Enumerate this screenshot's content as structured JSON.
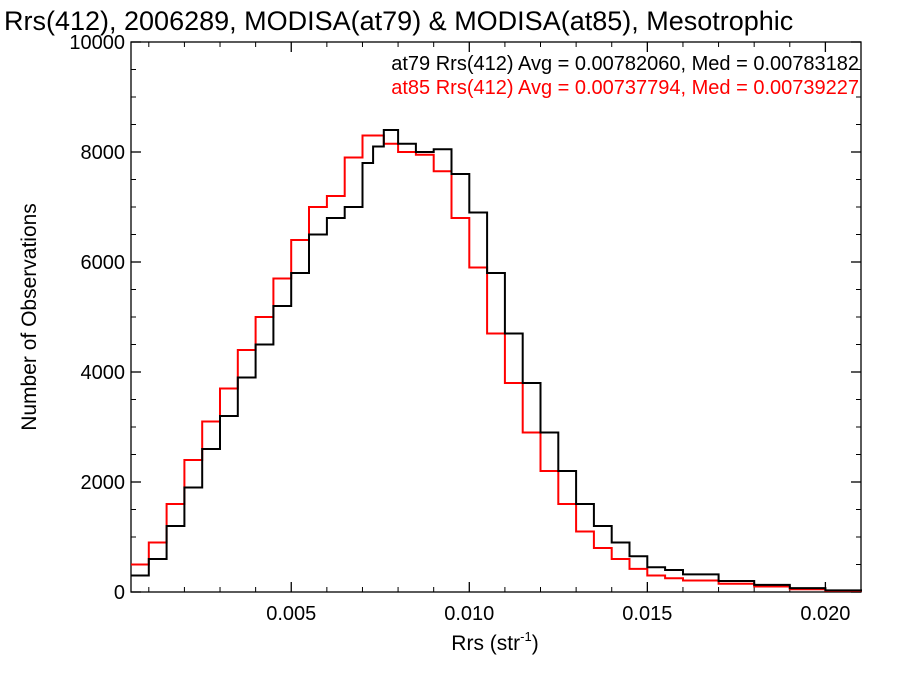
{
  "chart_data": {
    "type": "line",
    "title": "Rrs(412), 2006289, MODISA(at79) & MODISA(at85), Mesotrophic",
    "xlabel": "Rrs (str",
    "xlabel_sup": "-1",
    "xlabel_close": ")",
    "ylabel": "Number of Observations",
    "xlim": [
      0.0005,
      0.021
    ],
    "ylim": [
      0,
      10000
    ],
    "xticks": [
      0.005,
      0.01,
      0.015,
      0.02
    ],
    "xtick_labels": [
      "0.005",
      "0.010",
      "0.015",
      "0.020"
    ],
    "yticks": [
      0,
      2000,
      4000,
      6000,
      8000,
      10000
    ],
    "ytick_labels": [
      "0",
      "2000",
      "4000",
      "6000",
      "8000",
      "10000"
    ],
    "grid": false,
    "legend_position": "top-right",
    "series": [
      {
        "name": "at79",
        "color": "#000000",
        "legend_text": "at79 Rrs(412) Avg = 0.00782060, Med = 0.00783182",
        "x": [
          0.0005,
          0.001,
          0.0015,
          0.002,
          0.0025,
          0.003,
          0.0035,
          0.004,
          0.0045,
          0.005,
          0.0055,
          0.006,
          0.0065,
          0.007,
          0.0073,
          0.0076,
          0.008,
          0.0085,
          0.009,
          0.0095,
          0.01,
          0.0105,
          0.011,
          0.0115,
          0.012,
          0.0125,
          0.013,
          0.0135,
          0.014,
          0.0145,
          0.015,
          0.0155,
          0.016,
          0.017,
          0.018,
          0.019,
          0.02,
          0.021
        ],
        "y": [
          300,
          600,
          1200,
          1900,
          2600,
          3200,
          3900,
          4500,
          5200,
          5800,
          6500,
          6800,
          7000,
          7800,
          8100,
          8400,
          8150,
          8000,
          8050,
          7600,
          6900,
          5800,
          4700,
          3800,
          2900,
          2200,
          1600,
          1200,
          900,
          650,
          450,
          400,
          320,
          200,
          130,
          70,
          30,
          10
        ]
      },
      {
        "name": "at85",
        "color": "#ff0000",
        "legend_text": "at85 Rrs(412) Avg = 0.00737794, Med = 0.00739227",
        "x": [
          0.0005,
          0.001,
          0.0015,
          0.002,
          0.0025,
          0.003,
          0.0035,
          0.004,
          0.0045,
          0.005,
          0.0055,
          0.006,
          0.0065,
          0.007,
          0.0073,
          0.0076,
          0.008,
          0.0085,
          0.009,
          0.0095,
          0.01,
          0.0105,
          0.011,
          0.0115,
          0.012,
          0.0125,
          0.013,
          0.0135,
          0.014,
          0.0145,
          0.015,
          0.0155,
          0.016,
          0.017,
          0.018,
          0.019,
          0.02,
          0.021
        ],
        "y": [
          500,
          900,
          1600,
          2400,
          3100,
          3700,
          4400,
          5000,
          5700,
          6400,
          7000,
          7200,
          7900,
          8300,
          8300,
          8150,
          8000,
          7950,
          7650,
          6800,
          5900,
          4700,
          3800,
          2900,
          2200,
          1600,
          1100,
          800,
          600,
          420,
          300,
          250,
          210,
          150,
          100,
          50,
          20,
          5
        ]
      }
    ]
  }
}
